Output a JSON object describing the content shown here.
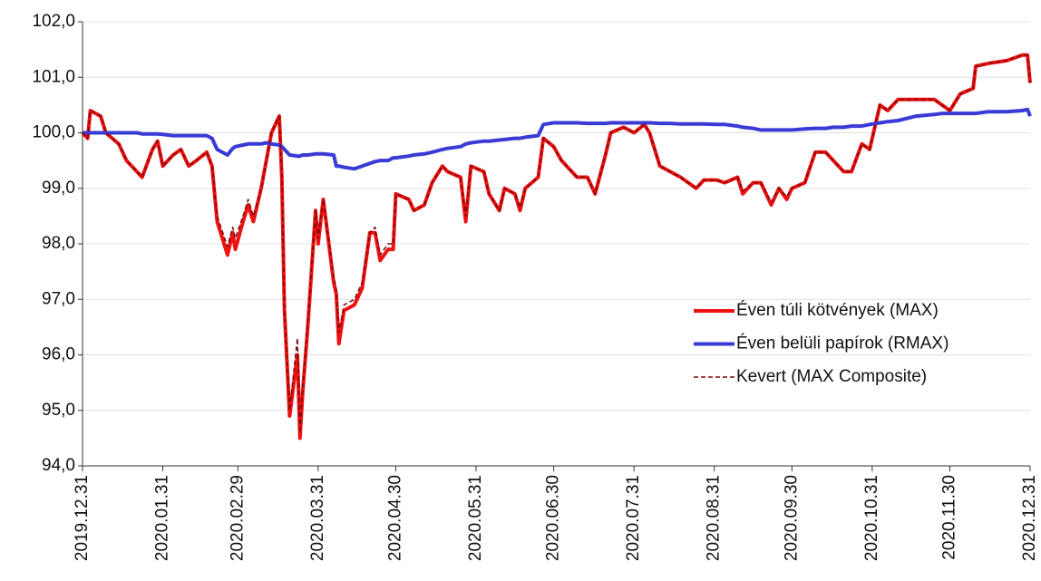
{
  "chart_data": {
    "type": "line",
    "x": [
      "2019.12.31",
      "2020.01.02",
      "2020.01.03",
      "2020.01.07",
      "2020.01.09",
      "2020.01.14",
      "2020.01.17",
      "2020.01.21",
      "2020.01.23",
      "2020.01.27",
      "2020.01.29",
      "2020.01.31",
      "2020.02.04",
      "2020.02.07",
      "2020.02.10",
      "2020.02.13",
      "2020.02.17",
      "2020.02.19",
      "2020.02.21",
      "2020.02.25",
      "2020.02.27",
      "2020.02.28",
      "2020.03.02",
      "2020.03.04",
      "2020.03.06",
      "2020.03.09",
      "2020.03.11",
      "2020.03.13",
      "2020.03.16",
      "2020.03.17",
      "2020.03.18",
      "2020.03.20",
      "2020.03.23",
      "2020.03.24",
      "2020.03.25",
      "2020.03.27",
      "2020.03.30",
      "2020.03.31",
      "2020.04.02",
      "2020.04.06",
      "2020.04.07",
      "2020.04.08",
      "2020.04.10",
      "2020.04.14",
      "2020.04.17",
      "2020.04.20",
      "2020.04.22",
      "2020.04.24",
      "2020.04.27",
      "2020.04.29",
      "2020.04.30",
      "2020.05.05",
      "2020.05.07",
      "2020.05.11",
      "2020.05.14",
      "2020.05.18",
      "2020.05.20",
      "2020.05.25",
      "2020.05.27",
      "2020.05.29",
      "2020.06.03",
      "2020.06.05",
      "2020.06.09",
      "2020.06.11",
      "2020.06.15",
      "2020.06.17",
      "2020.06.19",
      "2020.06.24",
      "2020.06.26",
      "2020.06.30",
      "2020.07.03",
      "2020.07.07",
      "2020.07.09",
      "2020.07.13",
      "2020.07.16",
      "2020.07.20",
      "2020.07.22",
      "2020.07.27",
      "2020.07.31",
      "2020.08.04",
      "2020.08.06",
      "2020.08.10",
      "2020.08.14",
      "2020.08.18",
      "2020.08.24",
      "2020.08.27",
      "2020.09.01",
      "2020.09.04",
      "2020.09.09",
      "2020.09.11",
      "2020.09.15",
      "2020.09.18",
      "2020.09.22",
      "2020.09.25",
      "2020.09.28",
      "2020.09.30",
      "2020.10.05",
      "2020.10.09",
      "2020.10.13",
      "2020.10.16",
      "2020.10.20",
      "2020.10.23",
      "2020.10.27",
      "2020.10.30",
      "2020.11.03",
      "2020.11.06",
      "2020.11.10",
      "2020.11.17",
      "2020.11.24",
      "2020.11.27",
      "2020.11.30",
      "2020.12.04",
      "2020.12.09",
      "2020.12.10",
      "2020.12.15",
      "2020.12.22",
      "2020.12.28",
      "2020.12.30",
      "2020.12.31"
    ],
    "series": [
      {
        "name": "Éven túli kötvények (MAX)",
        "color": "#ee1111",
        "width": 4,
        "dash": false,
        "values": [
          100.0,
          99.9,
          100.4,
          100.3,
          100.0,
          99.8,
          99.5,
          99.3,
          99.2,
          99.7,
          99.85,
          99.4,
          99.6,
          99.7,
          99.4,
          99.5,
          99.65,
          99.4,
          98.4,
          97.8,
          98.2,
          97.9,
          98.4,
          98.7,
          98.4,
          99.0,
          99.5,
          100.0,
          100.3,
          99.2,
          96.8,
          94.9,
          96.0,
          94.5,
          95.3,
          96.5,
          98.6,
          98.0,
          98.8,
          97.3,
          97.1,
          96.2,
          96.8,
          96.9,
          97.2,
          98.2,
          98.2,
          97.7,
          97.9,
          97.9,
          98.9,
          98.8,
          98.6,
          98.7,
          99.1,
          99.4,
          99.3,
          99.2,
          98.4,
          99.4,
          99.3,
          98.9,
          98.6,
          99.0,
          98.9,
          98.6,
          99.0,
          99.2,
          99.9,
          99.75,
          99.5,
          99.3,
          99.2,
          99.2,
          98.9,
          99.6,
          100.0,
          100.1,
          100.0,
          100.15,
          100.0,
          99.4,
          99.3,
          99.2,
          99.0,
          99.15,
          99.15,
          99.1,
          99.2,
          98.9,
          99.1,
          99.1,
          98.7,
          99.0,
          98.8,
          99.0,
          99.1,
          99.65,
          99.65,
          99.5,
          99.3,
          99.3,
          99.8,
          99.7,
          100.5,
          100.4,
          100.6,
          100.6,
          100.6,
          100.5,
          100.4,
          100.7,
          100.8,
          101.2,
          101.25,
          101.3,
          101.4,
          101.4,
          100.9
        ]
      },
      {
        "name": "Éven belüli papírok (RMAX)",
        "color": "#3a3ad6",
        "width": 4,
        "dash": false,
        "values": [
          100.0,
          100.0,
          100.0,
          100.0,
          100.0,
          100.0,
          100.0,
          100.0,
          99.98,
          99.98,
          99.98,
          99.97,
          99.95,
          99.95,
          99.95,
          99.95,
          99.95,
          99.9,
          99.7,
          99.6,
          99.72,
          99.75,
          99.78,
          99.8,
          99.8,
          99.8,
          99.82,
          99.8,
          99.78,
          99.75,
          99.7,
          99.6,
          99.58,
          99.58,
          99.6,
          99.6,
          99.62,
          99.62,
          99.62,
          99.6,
          99.4,
          99.4,
          99.38,
          99.35,
          99.4,
          99.45,
          99.48,
          99.5,
          99.5,
          99.55,
          99.55,
          99.58,
          99.6,
          99.62,
          99.65,
          99.7,
          99.72,
          99.75,
          99.8,
          99.82,
          99.85,
          99.85,
          99.87,
          99.88,
          99.9,
          99.9,
          99.92,
          99.95,
          100.15,
          100.18,
          100.18,
          100.18,
          100.18,
          100.17,
          100.17,
          100.17,
          100.18,
          100.18,
          100.18,
          100.18,
          100.18,
          100.17,
          100.17,
          100.16,
          100.16,
          100.16,
          100.15,
          100.15,
          100.12,
          100.1,
          100.08,
          100.05,
          100.05,
          100.05,
          100.05,
          100.05,
          100.07,
          100.08,
          100.08,
          100.1,
          100.1,
          100.12,
          100.12,
          100.15,
          100.18,
          100.2,
          100.22,
          100.3,
          100.33,
          100.35,
          100.35,
          100.35,
          100.35,
          100.35,
          100.38,
          100.38,
          100.4,
          100.42,
          100.3
        ]
      },
      {
        "name": "Kevert (MAX Composite)",
        "color": "#7a0a0a",
        "width": 1.5,
        "dash": true,
        "values": [
          100.0,
          99.9,
          100.4,
          100.3,
          100.0,
          99.8,
          99.5,
          99.3,
          99.2,
          99.7,
          99.85,
          99.4,
          99.6,
          99.7,
          99.4,
          99.5,
          99.65,
          99.4,
          98.5,
          97.95,
          98.3,
          98.1,
          98.5,
          98.8,
          98.5,
          99.0,
          99.5,
          100.0,
          100.3,
          99.2,
          96.8,
          95.0,
          96.3,
          94.6,
          95.4,
          96.6,
          98.6,
          98.1,
          98.8,
          97.4,
          97.2,
          96.4,
          96.9,
          97.0,
          97.3,
          98.2,
          98.3,
          97.8,
          98.0,
          98.0,
          98.9,
          98.8,
          98.6,
          98.7,
          99.1,
          99.4,
          99.3,
          99.2,
          98.5,
          99.4,
          99.3,
          98.9,
          98.6,
          99.0,
          98.9,
          98.65,
          99.0,
          99.2,
          99.9,
          99.75,
          99.5,
          99.3,
          99.2,
          99.2,
          98.9,
          99.6,
          100.0,
          100.1,
          100.0,
          100.15,
          100.0,
          99.4,
          99.3,
          99.2,
          99.0,
          99.15,
          99.15,
          99.1,
          99.2,
          98.95,
          99.1,
          99.1,
          98.75,
          99.0,
          98.85,
          99.0,
          99.1,
          99.65,
          99.65,
          99.5,
          99.3,
          99.3,
          99.8,
          99.7,
          100.5,
          100.4,
          100.6,
          100.6,
          100.6,
          100.5,
          100.4,
          100.7,
          100.8,
          101.2,
          101.25,
          101.3,
          101.4,
          101.4,
          100.9
        ]
      }
    ],
    "xlim": [
      "2019.12.31",
      "2020.12.31"
    ],
    "xticks": [
      "2019.12.31",
      "2020.01.31",
      "2020.02.29",
      "2020.03.31",
      "2020.04.30",
      "2020.05.31",
      "2020.06.30",
      "2020.07.31",
      "2020.08.31",
      "2020.09.30",
      "2020.10.31",
      "2020.11.30",
      "2020.12.31"
    ],
    "ylim": [
      94,
      102
    ],
    "yticks": [
      {
        "value": 94,
        "label": "94,0"
      },
      {
        "value": 95,
        "label": "95,0"
      },
      {
        "value": 96,
        "label": "96,0"
      },
      {
        "value": 97,
        "label": "97,0"
      },
      {
        "value": 98,
        "label": "98,0"
      },
      {
        "value": 99,
        "label": "99,0"
      },
      {
        "value": 100,
        "label": "100,0"
      },
      {
        "value": 101,
        "label": "101,0"
      },
      {
        "value": 102,
        "label": "102,0"
      }
    ],
    "grid": true,
    "legend": "right"
  }
}
